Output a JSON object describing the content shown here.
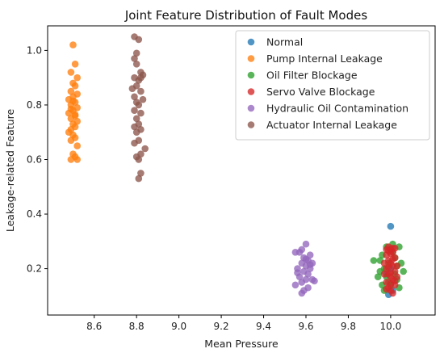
{
  "chart_data": {
    "type": "scatter",
    "title": "Joint Feature Distribution of Fault Modes",
    "xlabel": "Mean Pressure",
    "ylabel": "Leakage-related Feature",
    "xlim": [
      8.38,
      10.21
    ],
    "ylim": [
      0.03,
      1.09
    ],
    "xticks": [
      8.6,
      8.8,
      9.0,
      9.2,
      9.4,
      9.6,
      9.8,
      10.0
    ],
    "yticks": [
      0.2,
      0.4,
      0.6,
      0.8,
      1.0
    ],
    "xtick_labels": [
      "8.6",
      "8.8",
      "9.0",
      "9.2",
      "9.4",
      "9.6",
      "9.8",
      "10.0"
    ],
    "ytick_labels": [
      "0.2",
      "0.4",
      "0.6",
      "0.8",
      "1.0"
    ],
    "grid": false,
    "legend_position": "top-right",
    "series": [
      {
        "name": "Normal",
        "color": "#1f77b4",
        "points": [
          [
            10.0,
            0.355
          ],
          [
            9.99,
            0.105
          ],
          [
            10.01,
            0.12
          ],
          [
            10.0,
            0.2
          ],
          [
            9.98,
            0.18
          ]
        ]
      },
      {
        "name": "Pump Internal Leakage",
        "color": "#ff7f0e",
        "points": [
          [
            8.5,
            1.02
          ],
          [
            8.51,
            0.95
          ],
          [
            8.49,
            0.92
          ],
          [
            8.52,
            0.9
          ],
          [
            8.5,
            0.88
          ],
          [
            8.51,
            0.87
          ],
          [
            8.49,
            0.85
          ],
          [
            8.52,
            0.84
          ],
          [
            8.5,
            0.83
          ],
          [
            8.48,
            0.82
          ],
          [
            8.51,
            0.81
          ],
          [
            8.49,
            0.8
          ],
          [
            8.52,
            0.79
          ],
          [
            8.5,
            0.78
          ],
          [
            8.48,
            0.77
          ],
          [
            8.51,
            0.76
          ],
          [
            8.49,
            0.75
          ],
          [
            8.52,
            0.74
          ],
          [
            8.5,
            0.73
          ],
          [
            8.51,
            0.72
          ],
          [
            8.49,
            0.71
          ],
          [
            8.48,
            0.7
          ],
          [
            8.5,
            0.69
          ],
          [
            8.51,
            0.68
          ],
          [
            8.49,
            0.67
          ],
          [
            8.52,
            0.65
          ],
          [
            8.5,
            0.62
          ],
          [
            8.51,
            0.61
          ],
          [
            8.49,
            0.6
          ],
          [
            8.52,
            0.6
          ],
          [
            8.5,
            0.815
          ],
          [
            8.51,
            0.765
          ],
          [
            8.49,
            0.785
          ]
        ]
      },
      {
        "name": "Oil Filter Blockage",
        "color": "#2ca02c",
        "points": [
          [
            9.95,
            0.23
          ],
          [
            9.97,
            0.2
          ],
          [
            9.99,
            0.15
          ],
          [
            10.02,
            0.18
          ],
          [
            10.04,
            0.28
          ],
          [
            10.03,
            0.21
          ],
          [
            9.96,
            0.25
          ],
          [
            9.98,
            0.28
          ],
          [
            10.01,
            0.26
          ],
          [
            10.05,
            0.22
          ],
          [
            9.94,
            0.17
          ],
          [
            9.97,
            0.12
          ],
          [
            10.0,
            0.14
          ],
          [
            10.03,
            0.16
          ],
          [
            9.92,
            0.23
          ],
          [
            10.06,
            0.19
          ],
          [
            9.99,
            0.22
          ],
          [
            10.02,
            0.24
          ],
          [
            9.96,
            0.14
          ],
          [
            10.01,
            0.29
          ],
          [
            9.98,
            0.17
          ],
          [
            10.04,
            0.13
          ],
          [
            9.95,
            0.19
          ],
          [
            10.0,
            0.27
          ]
        ]
      },
      {
        "name": "Servo Valve Blockage",
        "color": "#d62728",
        "points": [
          [
            9.99,
            0.28
          ],
          [
            10.0,
            0.27
          ],
          [
            10.01,
            0.26
          ],
          [
            9.98,
            0.25
          ],
          [
            10.02,
            0.24
          ],
          [
            9.99,
            0.23
          ],
          [
            10.0,
            0.22
          ],
          [
            10.01,
            0.21
          ],
          [
            9.98,
            0.2
          ],
          [
            10.02,
            0.19
          ],
          [
            9.99,
            0.18
          ],
          [
            10.0,
            0.17
          ],
          [
            10.01,
            0.16
          ],
          [
            9.98,
            0.15
          ],
          [
            10.02,
            0.14
          ],
          [
            9.99,
            0.13
          ],
          [
            10.0,
            0.12
          ],
          [
            10.01,
            0.11
          ],
          [
            9.97,
            0.22
          ],
          [
            10.03,
            0.21
          ],
          [
            9.97,
            0.18
          ],
          [
            10.03,
            0.17
          ],
          [
            10.0,
            0.255
          ],
          [
            10.01,
            0.235
          ],
          [
            9.99,
            0.205
          ],
          [
            10.0,
            0.185
          ],
          [
            10.02,
            0.155
          ],
          [
            9.98,
            0.125
          ],
          [
            10.0,
            0.145
          ],
          [
            10.01,
            0.275
          ],
          [
            9.99,
            0.265
          ],
          [
            10.02,
            0.275
          ],
          [
            9.98,
            0.27
          ]
        ]
      },
      {
        "name": "Hydraulic Oil Contamination",
        "color": "#9467bd",
        "points": [
          [
            9.6,
            0.29
          ],
          [
            9.58,
            0.27
          ],
          [
            9.57,
            0.26
          ],
          [
            9.55,
            0.26
          ],
          [
            9.62,
            0.25
          ],
          [
            9.59,
            0.24
          ],
          [
            9.61,
            0.23
          ],
          [
            9.63,
            0.22
          ],
          [
            9.58,
            0.22
          ],
          [
            9.6,
            0.21
          ],
          [
            9.56,
            0.2
          ],
          [
            9.62,
            0.2
          ],
          [
            9.59,
            0.19
          ],
          [
            9.61,
            0.18
          ],
          [
            9.57,
            0.17
          ],
          [
            9.63,
            0.16
          ],
          [
            9.6,
            0.16
          ],
          [
            9.58,
            0.15
          ],
          [
            9.55,
            0.14
          ],
          [
            9.61,
            0.13
          ],
          [
            9.59,
            0.12
          ],
          [
            9.58,
            0.11
          ],
          [
            9.62,
            0.215
          ],
          [
            9.56,
            0.185
          ],
          [
            9.64,
            0.155
          ],
          [
            9.6,
            0.235
          ]
        ]
      },
      {
        "name": "Actuator Internal Leakage",
        "color": "#8c564b",
        "points": [
          [
            8.79,
            1.05
          ],
          [
            8.81,
            1.04
          ],
          [
            8.8,
            0.99
          ],
          [
            8.79,
            0.97
          ],
          [
            8.8,
            0.95
          ],
          [
            8.82,
            0.92
          ],
          [
            8.83,
            0.91
          ],
          [
            8.79,
            0.9
          ],
          [
            8.81,
            0.89
          ],
          [
            8.8,
            0.87
          ],
          [
            8.78,
            0.86
          ],
          [
            8.82,
            0.85
          ],
          [
            8.79,
            0.83
          ],
          [
            8.83,
            0.82
          ],
          [
            8.8,
            0.81
          ],
          [
            8.81,
            0.8
          ],
          [
            8.79,
            0.78
          ],
          [
            8.82,
            0.77
          ],
          [
            8.8,
            0.75
          ],
          [
            8.81,
            0.73
          ],
          [
            8.79,
            0.72
          ],
          [
            8.82,
            0.71
          ],
          [
            8.8,
            0.7
          ],
          [
            8.81,
            0.67
          ],
          [
            8.79,
            0.66
          ],
          [
            8.84,
            0.64
          ],
          [
            8.82,
            0.62
          ],
          [
            8.8,
            0.61
          ],
          [
            8.81,
            0.6
          ],
          [
            8.82,
            0.55
          ],
          [
            8.81,
            0.53
          ],
          [
            8.82,
            0.9
          ]
        ]
      }
    ]
  }
}
